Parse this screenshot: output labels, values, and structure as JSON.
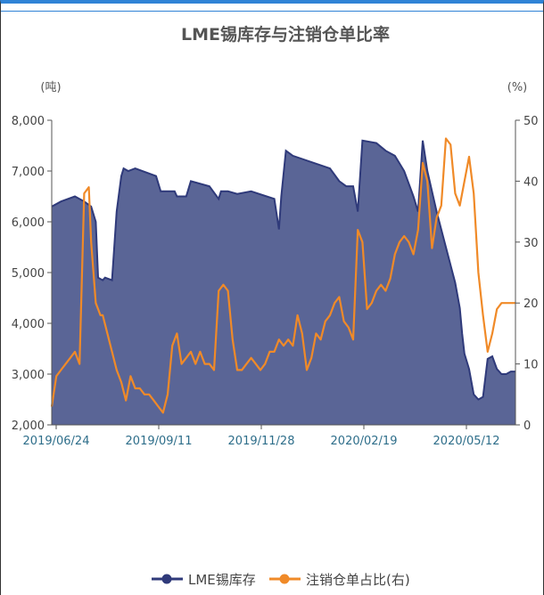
{
  "colors": {
    "area": "#5a6596",
    "area_line": "#2f3a7a",
    "line": "#f08a28",
    "border": "#2f83d6"
  },
  "chart_data": {
    "type": "area+line",
    "title": "LME锡库存与注销仓单比率",
    "left_unit": "(吨)",
    "right_unit": "(%)",
    "y_left_ticks": [
      "8,000",
      "7,000",
      "6,000",
      "5,000",
      "4,000",
      "3,000",
      "2,000"
    ],
    "y_left_range": [
      2000,
      8000
    ],
    "y_right_ticks": [
      "50",
      "40",
      "30",
      "20",
      "10",
      "0"
    ],
    "y_right_range": [
      0,
      50
    ],
    "x_ticks": [
      "2019/06/24",
      "2019/09/11",
      "2019/11/28",
      "2020/02/19",
      "2020/05/12"
    ],
    "x_range": [
      0,
      1
    ],
    "series": [
      {
        "name": "LME锡库存",
        "type": "area",
        "axis": "left",
        "x": [
          0.0,
          0.02,
          0.05,
          0.07,
          0.085,
          0.095,
          0.1,
          0.11,
          0.115,
          0.13,
          0.14,
          0.15,
          0.155,
          0.165,
          0.18,
          0.225,
          0.235,
          0.265,
          0.27,
          0.29,
          0.3,
          0.34,
          0.36,
          0.365,
          0.38,
          0.4,
          0.43,
          0.48,
          0.49,
          0.495,
          0.505,
          0.52,
          0.6,
          0.62,
          0.635,
          0.65,
          0.66,
          0.67,
          0.7,
          0.72,
          0.74,
          0.76,
          0.78,
          0.79,
          0.8,
          0.81,
          0.83,
          0.85,
          0.87,
          0.88,
          0.885,
          0.89,
          0.9,
          0.91,
          0.92,
          0.93,
          0.94,
          0.95,
          0.96,
          0.97,
          0.98,
          0.99,
          1.0
        ],
        "values": [
          6300,
          6400,
          6500,
          6400,
          6300,
          6000,
          4900,
          4850,
          4900,
          4850,
          6200,
          6900,
          7050,
          7000,
          7050,
          6900,
          6600,
          6600,
          6500,
          6500,
          6800,
          6700,
          6450,
          6600,
          6600,
          6550,
          6600,
          6450,
          5850,
          6500,
          7400,
          7300,
          7050,
          6800,
          6700,
          6700,
          6200,
          7600,
          7550,
          7400,
          7300,
          7000,
          6500,
          6200,
          7600,
          7000,
          6200,
          5500,
          4800,
          4300,
          3800,
          3400,
          3100,
          2600,
          2500,
          2550,
          3300,
          3350,
          3100,
          3000,
          3000,
          3050,
          3050
        ]
      },
      {
        "name": "注销仓单占比(右)",
        "type": "line",
        "axis": "right",
        "x": [
          0.0,
          0.01,
          0.02,
          0.03,
          0.04,
          0.05,
          0.06,
          0.07,
          0.08,
          0.085,
          0.09,
          0.095,
          0.1,
          0.105,
          0.11,
          0.12,
          0.13,
          0.14,
          0.15,
          0.16,
          0.17,
          0.18,
          0.19,
          0.2,
          0.21,
          0.22,
          0.23,
          0.24,
          0.25,
          0.26,
          0.27,
          0.28,
          0.29,
          0.3,
          0.31,
          0.32,
          0.33,
          0.34,
          0.35,
          0.36,
          0.37,
          0.38,
          0.39,
          0.4,
          0.41,
          0.42,
          0.43,
          0.44,
          0.45,
          0.46,
          0.47,
          0.48,
          0.49,
          0.5,
          0.51,
          0.52,
          0.53,
          0.54,
          0.55,
          0.56,
          0.57,
          0.58,
          0.59,
          0.6,
          0.61,
          0.62,
          0.63,
          0.64,
          0.65,
          0.66,
          0.67,
          0.68,
          0.69,
          0.7,
          0.71,
          0.72,
          0.73,
          0.74,
          0.75,
          0.76,
          0.77,
          0.78,
          0.79,
          0.8,
          0.81,
          0.82,
          0.83,
          0.84,
          0.85,
          0.86,
          0.87,
          0.88,
          0.89,
          0.9,
          0.91,
          0.92,
          0.93,
          0.94,
          0.95,
          0.96,
          0.97,
          0.98,
          0.99,
          1.0
        ],
        "values": [
          3,
          8,
          9,
          10,
          11,
          12,
          10,
          38,
          39,
          30,
          25,
          20,
          19,
          18,
          18,
          15,
          12,
          9,
          7,
          4,
          8,
          6,
          6,
          5,
          5,
          4,
          3,
          2,
          5,
          13,
          15,
          10,
          11,
          12,
          10,
          12,
          10,
          10,
          9,
          22,
          23,
          22,
          14,
          9,
          9,
          10,
          11,
          10,
          9,
          10,
          12,
          12,
          14,
          13,
          14,
          13,
          18,
          15,
          9,
          11,
          15,
          14,
          17,
          18,
          20,
          21,
          17,
          16,
          14,
          32,
          30,
          19,
          20,
          22,
          23,
          22,
          24,
          28,
          30,
          31,
          30,
          28,
          32,
          43,
          40,
          29,
          34,
          36,
          47,
          46,
          38,
          36,
          40,
          44,
          38,
          25,
          18,
          12,
          15,
          19,
          20,
          20,
          20,
          20
        ]
      }
    ],
    "legend": [
      "LME锡库存",
      "注销仓单占比(右)"
    ]
  }
}
